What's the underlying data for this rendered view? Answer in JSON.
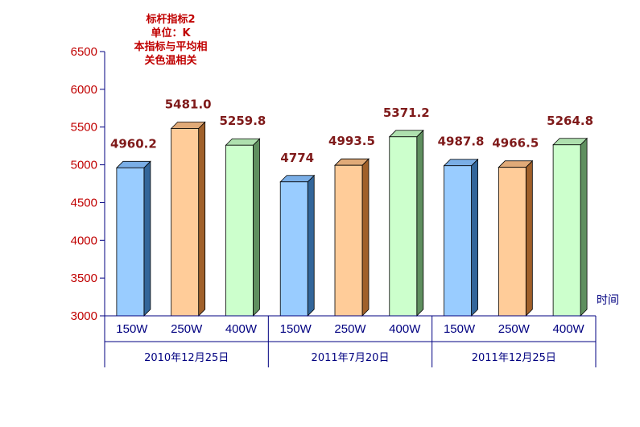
{
  "chart_data": {
    "type": "bar",
    "title_lines": [
      "标杆指标2",
      "单位：K",
      "本指标与平均相",
      "关色温相关"
    ],
    "xlabel": "时间",
    "ylabel": "",
    "ylim": [
      3000,
      6500
    ],
    "yticks": [
      3000,
      3500,
      4000,
      4500,
      5000,
      5500,
      6000,
      6500
    ],
    "groups": [
      {
        "label": "2010年12月25日",
        "categories": [
          "150W",
          "250W",
          "400W"
        ],
        "values": [
          4960.2,
          5481.0,
          5259.8
        ],
        "value_labels": [
          "4960.2",
          "5481.0",
          "5259.8"
        ]
      },
      {
        "label": "2011年7月20日",
        "categories": [
          "150W",
          "250W",
          "400W"
        ],
        "values": [
          4774,
          4993.5,
          5371.2
        ],
        "value_labels": [
          "4774",
          "4993.5",
          "5371.2"
        ]
      },
      {
        "label": "2011年12月25日",
        "categories": [
          "150W",
          "250W",
          "400W"
        ],
        "values": [
          4987.8,
          4966.5,
          5264.8
        ],
        "value_labels": [
          "4987.8",
          "4966.5",
          "5264.8"
        ]
      }
    ],
    "bar_colors": {
      "150W": {
        "front": "#99ccff",
        "top": "#7aaee6",
        "side": "#33669a"
      },
      "250W": {
        "front": "#ffcc99",
        "top": "#e0aa78",
        "side": "#a0602a"
      },
      "400W": {
        "front": "#ccffcc",
        "top": "#aee0ae",
        "side": "#5f8f5f"
      }
    },
    "grid": false,
    "legend": "none"
  }
}
